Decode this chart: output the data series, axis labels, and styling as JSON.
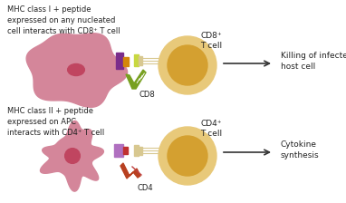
{
  "bg_color": "#ffffff",
  "top_text": "MHC class I + peptide\nexpressed on any nucleated\ncell interacts with CD8⁺ T cell",
  "bottom_text": "MHC class II + peptide\nexpressed on APC\ninteracts with CD4⁺ T cell",
  "top_label_cell": "CD8⁺\nT cell",
  "bottom_label_cell": "CD4⁺\nT cell",
  "top_coreceptor": "CD8",
  "bottom_coreceptor": "CD4",
  "top_outcome": "Killing of infected\nhost cell",
  "bottom_outcome": "Cytokine\nsynthesis",
  "infected_cell_color": "#d4869a",
  "infected_nucleus_color": "#c04560",
  "apc_cell_color": "#d4869a",
  "apc_nucleus_color": "#c04560",
  "t_cell_outer_color": "#e8c97a",
  "t_cell_inner_color": "#d4a030",
  "mhc1_purple": "#7b2d8b",
  "mhc1_orange": "#d4870a",
  "tcr1_green_light": "#c8d840",
  "tcr1_beige": "#d8c890",
  "cd8_green": "#78a020",
  "mhc2_lavender": "#b070c0",
  "mhc2_red": "#c03030",
  "tcr2_beige": "#d8c890",
  "cd4_brown": "#b84020",
  "arrow_color": "#333333",
  "text_color": "#222222"
}
